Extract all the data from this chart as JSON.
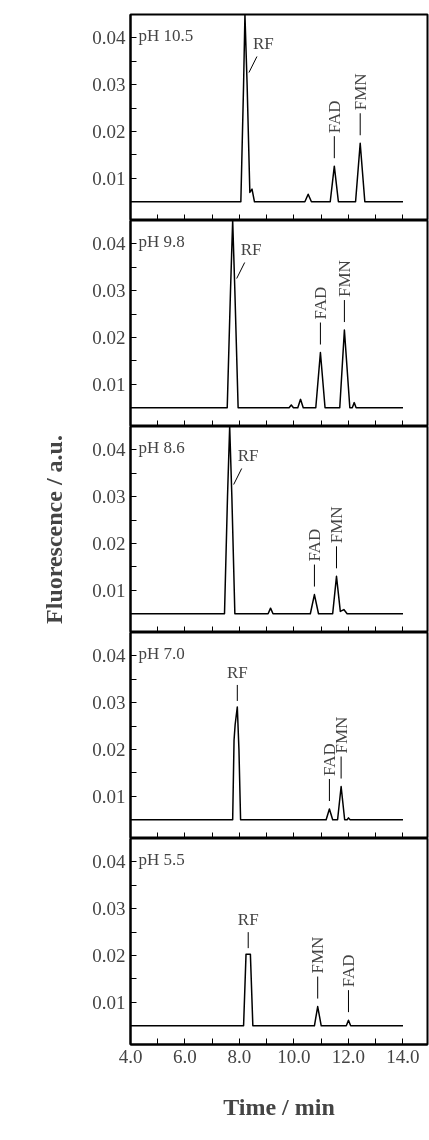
{
  "chart_data": [
    {
      "type": "line",
      "annotations": [
        "pH 10.5",
        {
          "text": "RF",
          "x": 8.2,
          "y": 0.045
        },
        {
          "text": "FAD",
          "x": 11.48,
          "y": 0.0126
        },
        {
          "text": "FMN",
          "x": 12.43,
          "y": 0.0175
        }
      ],
      "x": [
        4.0,
        8.05,
        8.15,
        8.2,
        8.28,
        8.38,
        8.46,
        8.55,
        10.4,
        10.52,
        10.64,
        11.33,
        11.48,
        11.63,
        12.26,
        12.43,
        12.6,
        14.0
      ],
      "series": [
        {
          "color": "#000000",
          "values": [
            0.005,
            0.005,
            0.03,
            0.045,
            0.03,
            0.007,
            0.0077,
            0.005,
            0.005,
            0.0066,
            0.005,
            0.005,
            0.0126,
            0.005,
            0.005,
            0.0175,
            0.005,
            0.005
          ]
        }
      ],
      "xlim": [
        4.0,
        14.9
      ],
      "ylim": [
        0.001,
        0.045
      ],
      "xticks": [
        4,
        5,
        6,
        7,
        8,
        9,
        10,
        11,
        12,
        13,
        14
      ],
      "yticks": [
        {
          "value": 0.005,
          "label": null
        },
        0.01,
        {
          "value": 0.015,
          "label": null
        },
        0.02,
        {
          "value": 0.025,
          "label": null
        },
        0.03,
        {
          "value": 0.035,
          "label": null
        },
        0.04
      ],
      "tick_labels": "y",
      "grid": false
    },
    {
      "type": "line",
      "annotations": [
        "pH 9.8",
        {
          "text": "RF",
          "x": 7.75,
          "y": 0.045
        },
        {
          "text": "FAD",
          "x": 10.97,
          "y": 0.0168
        },
        {
          "text": "FMN",
          "x": 11.85,
          "y": 0.0216
        }
      ],
      "x": [
        4.0,
        7.55,
        7.67,
        7.75,
        7.83,
        7.95,
        9.82,
        9.9,
        9.98,
        10.14,
        10.24,
        10.34,
        10.8,
        10.97,
        11.14,
        11.68,
        11.85,
        12.05,
        12.14,
        12.21,
        12.28,
        14.0
      ],
      "series": [
        {
          "color": "#000000",
          "values": [
            0.005,
            0.005,
            0.03,
            0.045,
            0.03,
            0.005,
            0.005,
            0.0056,
            0.005,
            0.005,
            0.0068,
            0.005,
            0.005,
            0.0168,
            0.005,
            0.005,
            0.0216,
            0.005,
            0.005,
            0.0061,
            0.005,
            0.005
          ]
        }
      ],
      "xlim": [
        4.0,
        14.9
      ],
      "ylim": [
        0.001,
        0.045
      ],
      "xticks": [
        4,
        5,
        6,
        7,
        8,
        9,
        10,
        11,
        12,
        13,
        14
      ],
      "yticks": [
        {
          "value": 0.005,
          "label": null
        },
        0.01,
        {
          "value": 0.015,
          "label": null
        },
        0.02,
        {
          "value": 0.025,
          "label": null
        },
        0.03,
        {
          "value": 0.035,
          "label": null
        },
        0.04
      ],
      "tick_labels": "y",
      "grid": false
    },
    {
      "type": "line",
      "ylabel": "Fluorescence / a.u.",
      "annotations": [
        "pH 8.6",
        {
          "text": "RF",
          "x": 7.64,
          "y": 0.045
        },
        {
          "text": "FAD",
          "x": 10.75,
          "y": 0.0091
        },
        {
          "text": "FMN",
          "x": 11.56,
          "y": 0.013
        }
      ],
      "x": [
        4.0,
        7.45,
        7.56,
        7.64,
        7.72,
        7.83,
        9.05,
        9.14,
        9.23,
        10.6,
        10.75,
        10.9,
        11.42,
        11.56,
        11.7,
        11.83,
        11.95,
        14.0
      ],
      "series": [
        {
          "color": "#000000",
          "values": [
            0.005,
            0.005,
            0.03,
            0.045,
            0.03,
            0.005,
            0.005,
            0.0062,
            0.005,
            0.005,
            0.0091,
            0.005,
            0.005,
            0.013,
            0.0055,
            0.0059,
            0.005,
            0.005
          ]
        }
      ],
      "xlim": [
        4.0,
        14.9
      ],
      "ylim": [
        0.001,
        0.045
      ],
      "xticks": [
        4,
        5,
        6,
        7,
        8,
        9,
        10,
        11,
        12,
        13,
        14
      ],
      "yticks": [
        {
          "value": 0.005,
          "label": null
        },
        0.01,
        {
          "value": 0.015,
          "label": null
        },
        0.02,
        {
          "value": 0.025,
          "label": null
        },
        0.03,
        {
          "value": 0.035,
          "label": null
        },
        0.04
      ],
      "tick_labels": "y",
      "grid": false
    },
    {
      "type": "line",
      "annotations": [
        "pH 7.0",
        {
          "text": "RF",
          "x": 7.92,
          "y": 0.0291
        },
        {
          "text": "FAD",
          "x": 11.3,
          "y": 0.0073
        },
        {
          "text": "FMN",
          "x": 11.73,
          "y": 0.0121
        }
      ],
      "x": [
        4.0,
        7.75,
        7.8,
        7.84,
        7.92,
        7.98,
        8.04,
        11.18,
        11.3,
        11.42,
        11.6,
        11.73,
        11.86,
        11.95,
        12.0,
        12.06,
        14.0
      ],
      "series": [
        {
          "color": "#000000",
          "values": [
            0.005,
            0.005,
            0.022,
            0.0253,
            0.0291,
            0.02,
            0.005,
            0.005,
            0.0073,
            0.005,
            0.005,
            0.0121,
            0.005,
            0.005,
            0.0054,
            0.005,
            0.005
          ]
        }
      ],
      "xlim": [
        4.0,
        14.9
      ],
      "ylim": [
        0.001,
        0.045
      ],
      "xticks": [
        4,
        5,
        6,
        7,
        8,
        9,
        10,
        11,
        12,
        13,
        14
      ],
      "yticks": [
        {
          "value": 0.005,
          "label": null
        },
        0.01,
        {
          "value": 0.015,
          "label": null
        },
        0.02,
        {
          "value": 0.025,
          "label": null
        },
        0.03,
        {
          "value": 0.035,
          "label": null
        },
        0.04
      ],
      "tick_labels": "y",
      "grid": false
    },
    {
      "type": "line",
      "xlabel": "Time / min",
      "annotations": [
        "pH 5.5",
        {
          "text": "RF",
          "x": 8.32,
          "y": 0.0203
        },
        {
          "text": "FMN",
          "x": 10.87,
          "y": 0.0091
        },
        {
          "text": "FAD",
          "x": 12.0,
          "y": 0.0062
        }
      ],
      "x": [
        4.0,
        8.15,
        8.24,
        8.4,
        8.49,
        10.75,
        10.87,
        11.0,
        11.92,
        12.0,
        12.08,
        14.0
      ],
      "series": [
        {
          "color": "#000000",
          "values": [
            0.005,
            0.005,
            0.0203,
            0.0203,
            0.005,
            0.005,
            0.0091,
            0.005,
            0.005,
            0.0062,
            0.005,
            0.005
          ]
        }
      ],
      "xlim": [
        4.0,
        14.9
      ],
      "ylim": [
        0.001,
        0.045
      ],
      "xticks": [
        {
          "value": 4,
          "label": "4.0"
        },
        {
          "value": 5,
          "label": null
        },
        {
          "value": 6,
          "label": "6.0"
        },
        {
          "value": 7,
          "label": null
        },
        {
          "value": 8,
          "label": "8.0"
        },
        {
          "value": 9,
          "label": null
        },
        {
          "value": 10,
          "label": "10.0"
        },
        {
          "value": 11,
          "label": null
        },
        {
          "value": 12,
          "label": "12.0"
        },
        {
          "value": 13,
          "label": null
        },
        {
          "value": 14,
          "label": "14.0"
        }
      ],
      "yticks": [
        {
          "value": 0.005,
          "label": null
        },
        0.01,
        {
          "value": 0.015,
          "label": null
        },
        0.02,
        {
          "value": 0.025,
          "label": null
        },
        0.03,
        {
          "value": 0.035,
          "label": null
        },
        0.04
      ],
      "grid": false
    }
  ]
}
